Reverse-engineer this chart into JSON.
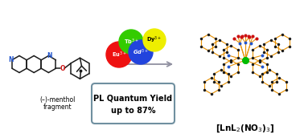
{
  "bg_color": "#ffffff",
  "arrow_color": "#9090a0",
  "box_edge_color": "#7090a0",
  "box_text_line1": "PL Quantum Yield",
  "box_text_line2": "up to 87%",
  "label_menthol_line1": "(–)-menthol",
  "label_menthol_line2": "fragment",
  "label_complex": "[LnL$_2$(NO$_3$)$_3$]",
  "eu_color": "#ee1111",
  "tb_color": "#33cc00",
  "gd_color": "#2244dd",
  "dy_color": "#eeee00",
  "eu_label": "Eu$^{3+}$",
  "tb_label": "Tb$^{3+}$",
  "gd_label": "Gd$^{3+}$",
  "dy_label": "Dy$^{3+}$",
  "bond_color": "#e8940a",
  "atom_dark": "#1a1a1a",
  "atom_N": "#2255cc",
  "atom_O": "#cc1111",
  "atom_Ln": "#00bb00",
  "figsize": [
    3.78,
    1.72
  ],
  "dpi": 100
}
